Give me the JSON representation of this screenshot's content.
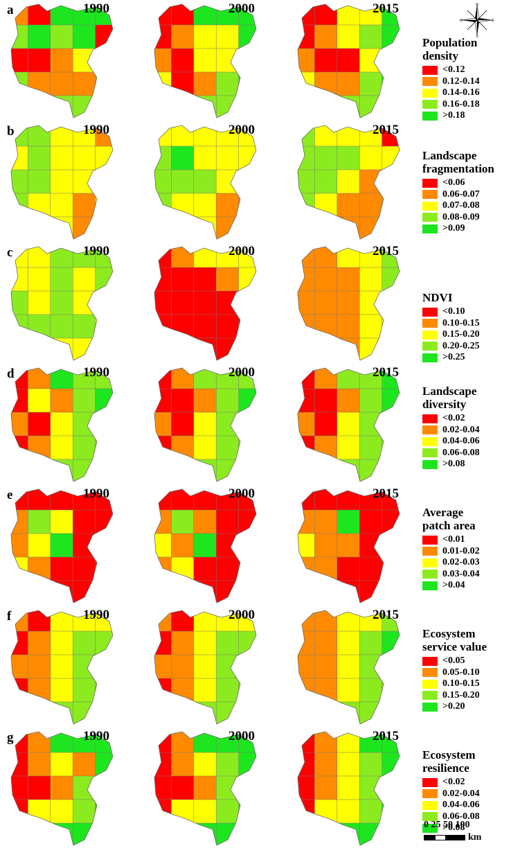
{
  "colors": {
    "c1": "#ff0000",
    "c2": "#ff8a00",
    "c3": "#ffff00",
    "c4": "#8ceb1e",
    "c5": "#1ee61e"
  },
  "compass": {
    "n": "N",
    "s": "S",
    "e": "E",
    "w": "W"
  },
  "scale": {
    "ticks": "0 25 50 100",
    "unit": "km"
  },
  "panels": [
    {
      "letter": "a",
      "years": [
        "1990",
        "2000",
        "2015"
      ],
      "legend_title": [
        "Population",
        "density"
      ],
      "legend": [
        "<0.12",
        "0.12-0.14",
        "0.14-0.16",
        "0.16-0.18",
        ">0.18"
      ],
      "maps": [
        [
          2,
          1,
          5,
          5,
          5,
          4,
          5,
          4,
          5,
          1,
          1,
          1,
          2,
          3,
          3,
          4,
          2,
          2,
          2,
          4,
          5,
          5,
          4,
          4,
          5
        ],
        [
          1,
          1,
          5,
          5,
          5,
          1,
          2,
          3,
          3,
          5,
          2,
          1,
          3,
          3,
          4,
          3,
          1,
          2,
          4,
          5,
          5,
          4,
          4,
          4,
          5
        ],
        [
          1,
          1,
          3,
          3,
          5,
          1,
          2,
          3,
          4,
          5,
          2,
          1,
          1,
          3,
          4,
          3,
          2,
          2,
          4,
          5,
          5,
          4,
          4,
          4,
          5
        ]
      ]
    },
    {
      "letter": "b",
      "years": [
        "1990",
        "2000",
        "2015"
      ],
      "legend_title": [
        "Landscape",
        "fragmentation"
      ],
      "legend": [
        "<0.06",
        "0.06-0.07",
        "0.07-0.08",
        "0.08-0.09",
        ">0.09"
      ],
      "maps": [
        [
          4,
          4,
          3,
          3,
          2,
          3,
          4,
          3,
          3,
          3,
          4,
          4,
          3,
          3,
          3,
          4,
          3,
          3,
          2,
          3,
          4,
          3,
          3,
          2,
          2
        ],
        [
          3,
          3,
          3,
          3,
          3,
          4,
          5,
          3,
          3,
          3,
          4,
          4,
          4,
          3,
          3,
          4,
          3,
          3,
          2,
          2,
          3,
          3,
          3,
          2,
          2
        ],
        [
          4,
          3,
          3,
          3,
          1,
          4,
          4,
          4,
          3,
          3,
          4,
          4,
          3,
          2,
          3,
          4,
          3,
          2,
          2,
          2,
          4,
          3,
          2,
          2,
          2
        ]
      ]
    },
    {
      "letter": "c",
      "years": [
        "1990",
        "2000",
        "2015"
      ],
      "legend_title": [
        "NDVI"
      ],
      "legend": [
        "<0.10",
        "0.10-0.15",
        "0.15-0.20",
        "0.20-0.25",
        ">0.25"
      ],
      "maps": [
        [
          3,
          3,
          4,
          4,
          4,
          3,
          3,
          4,
          3,
          4,
          4,
          3,
          4,
          3,
          4,
          4,
          4,
          4,
          4,
          3,
          4,
          4,
          3,
          3,
          4
        ],
        [
          1,
          2,
          3,
          3,
          3,
          1,
          1,
          1,
          2,
          3,
          1,
          1,
          1,
          1,
          2,
          1,
          1,
          1,
          1,
          1,
          2,
          1,
          1,
          1,
          1
        ],
        [
          2,
          2,
          3,
          3,
          4,
          2,
          2,
          2,
          3,
          4,
          2,
          2,
          2,
          3,
          3,
          2,
          2,
          2,
          3,
          3,
          2,
          2,
          2,
          3,
          3
        ]
      ]
    },
    {
      "letter": "d",
      "years": [
        "1990",
        "2000",
        "2015"
      ],
      "legend_title": [
        "Landscape",
        "diversity"
      ],
      "legend": [
        "<0.02",
        "0.02-0.04",
        "0.04-0.06",
        "0.06-0.08",
        ">0.08"
      ],
      "maps": [
        [
          1,
          2,
          5,
          4,
          4,
          1,
          3,
          2,
          4,
          5,
          2,
          1,
          3,
          4,
          4,
          1,
          2,
          3,
          4,
          4,
          5,
          4,
          4,
          4,
          5
        ],
        [
          1,
          2,
          4,
          4,
          4,
          1,
          1,
          2,
          4,
          5,
          2,
          1,
          3,
          4,
          4,
          1,
          2,
          3,
          4,
          4,
          5,
          4,
          4,
          4,
          5
        ],
        [
          1,
          2,
          4,
          4,
          5,
          1,
          1,
          2,
          4,
          5,
          2,
          1,
          3,
          4,
          4,
          1,
          2,
          3,
          4,
          4,
          5,
          4,
          4,
          4,
          5
        ]
      ]
    },
    {
      "letter": "e",
      "years": [
        "1990",
        "2000",
        "2015"
      ],
      "legend_title": [
        "Average",
        "patch area"
      ],
      "legend": [
        "<0.01",
        "0.01-0.02",
        "0.02-0.03",
        "0.03-0.04",
        ">0.04"
      ],
      "maps": [
        [
          1,
          1,
          1,
          1,
          1,
          2,
          4,
          3,
          1,
          1,
          2,
          3,
          5,
          1,
          1,
          3,
          2,
          1,
          1,
          1,
          1,
          1,
          1,
          1,
          1
        ],
        [
          1,
          1,
          1,
          1,
          1,
          2,
          4,
          2,
          1,
          1,
          3,
          2,
          5,
          1,
          1,
          2,
          3,
          1,
          1,
          1,
          1,
          1,
          1,
          1,
          1
        ],
        [
          1,
          1,
          1,
          1,
          1,
          2,
          2,
          5,
          1,
          1,
          3,
          2,
          2,
          1,
          1,
          2,
          2,
          1,
          1,
          1,
          1,
          1,
          1,
          1,
          1
        ]
      ]
    },
    {
      "letter": "f",
      "years": [
        "1990",
        "2000",
        "2015"
      ],
      "legend_title": [
        "Ecosystem",
        "service value"
      ],
      "legend": [
        "<0.05",
        "0.05-0.10",
        "0.10-0.15",
        "0.15-0.20",
        ">0.20"
      ],
      "maps": [
        [
          2,
          1,
          3,
          3,
          3,
          1,
          2,
          3,
          4,
          4,
          2,
          2,
          3,
          4,
          4,
          1,
          2,
          3,
          4,
          4,
          2,
          2,
          4,
          4,
          4
        ],
        [
          2,
          1,
          3,
          3,
          3,
          1,
          2,
          3,
          4,
          4,
          2,
          2,
          3,
          4,
          4,
          1,
          2,
          3,
          4,
          4,
          2,
          2,
          4,
          4,
          4
        ],
        [
          2,
          2,
          3,
          3,
          4,
          2,
          2,
          3,
          4,
          5,
          2,
          2,
          3,
          4,
          4,
          2,
          2,
          3,
          4,
          4,
          2,
          2,
          4,
          4,
          4
        ]
      ]
    },
    {
      "letter": "g",
      "years": [
        "1990",
        "2000",
        "2015"
      ],
      "legend_title": [
        "Ecosystem",
        "resilience"
      ],
      "legend": [
        "<0.02",
        "0.02-0.04",
        "0.04-0.06",
        "0.06-0.08",
        ">0.08"
      ],
      "maps": [
        [
          1,
          2,
          5,
          5,
          5,
          1,
          2,
          3,
          2,
          5,
          1,
          1,
          2,
          4,
          5,
          1,
          3,
          3,
          4,
          5,
          4,
          5,
          5,
          5,
          5
        ],
        [
          1,
          2,
          5,
          5,
          5,
          1,
          2,
          3,
          4,
          5,
          1,
          1,
          2,
          4,
          5,
          1,
          3,
          3,
          4,
          5,
          4,
          5,
          5,
          5,
          5
        ],
        [
          1,
          2,
          3,
          5,
          5,
          1,
          2,
          3,
          4,
          5,
          1,
          2,
          3,
          4,
          5,
          1,
          3,
          3,
          4,
          5,
          4,
          5,
          5,
          5,
          5
        ]
      ]
    }
  ]
}
